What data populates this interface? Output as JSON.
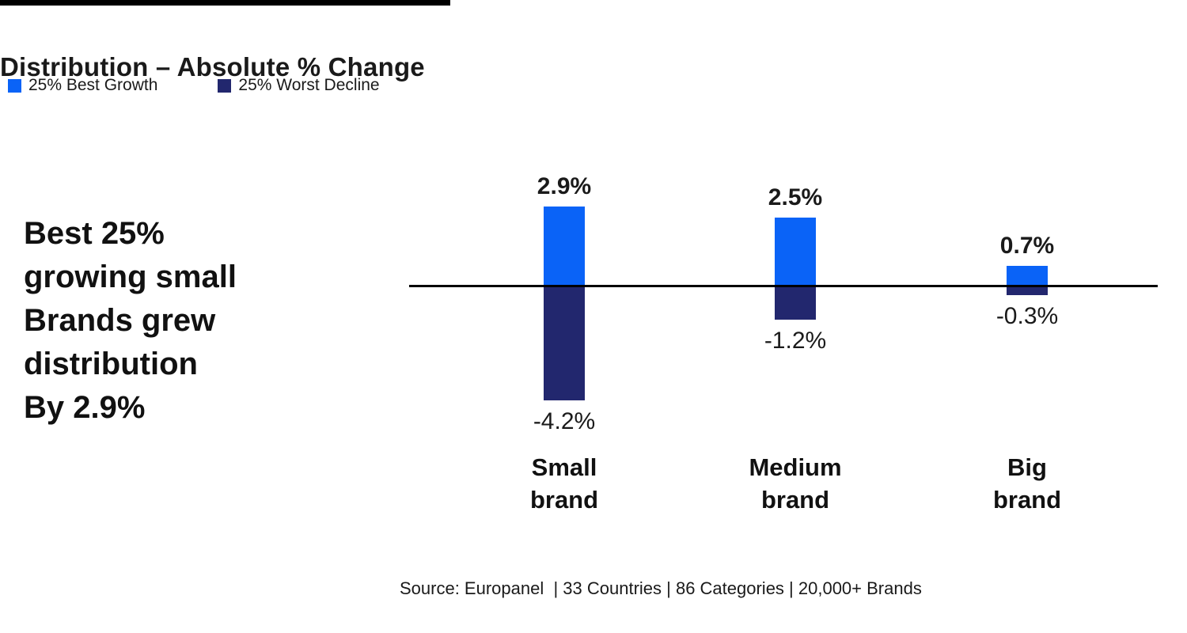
{
  "page": {
    "background": "#ffffff",
    "top_bar_color": "#000000"
  },
  "header": {
    "title": "Distribution – Absolute % Change"
  },
  "legend": [
    {
      "label": "25% Best Growth",
      "color": "#0a63f7"
    },
    {
      "label": "25% Worst Decline",
      "color": "#22276e"
    }
  ],
  "callout": {
    "lines": [
      "Best 25%",
      "growing small",
      "Brands grew",
      "distribution",
      "By 2.9%"
    ]
  },
  "chart_data": {
    "type": "bar",
    "title": "Distribution – Absolute % Change",
    "categories": [
      "Small brand",
      "Medium brand",
      "Big brand"
    ],
    "series": [
      {
        "name": "25% Best Growth",
        "color": "#0a63f7",
        "values": [
          2.9,
          2.5,
          0.7
        ]
      },
      {
        "name": "25% Worst Decline",
        "color": "#22276e",
        "values": [
          -4.2,
          -1.2,
          -0.3
        ]
      }
    ],
    "value_labels": {
      "positive": [
        "2.9%",
        "2.5%",
        "0.7%"
      ],
      "negative": [
        "-4.2%",
        "-1.2%",
        "-0.3%"
      ]
    },
    "baseline": 0,
    "ylim": [
      -4.5,
      3.2
    ],
    "grid": false,
    "axis_line_color": "#000000",
    "legend_position": "top-left"
  },
  "footer": {
    "source": "Source: Europanel  | 33 Countries | 86 Categories | 20,000+ Brands"
  }
}
